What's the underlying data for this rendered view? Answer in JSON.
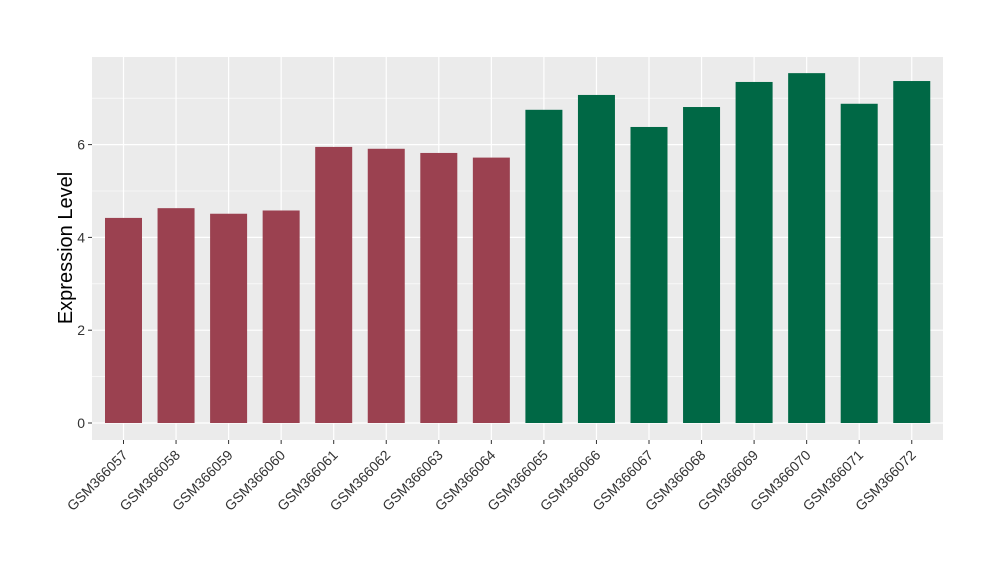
{
  "chart_data": {
    "type": "bar",
    "title": "",
    "xlabel": "",
    "ylabel": "Expression Level",
    "ylim": [
      0,
      7.9
    ],
    "yticks": [
      0,
      2,
      4,
      6
    ],
    "grid": true,
    "categories": [
      "GSM366057",
      "GSM366058",
      "GSM366059",
      "GSM366060",
      "GSM366061",
      "GSM366062",
      "GSM366063",
      "GSM366064",
      "GSM366065",
      "GSM366066",
      "GSM366067",
      "GSM366068",
      "GSM366069",
      "GSM366070",
      "GSM366071",
      "GSM366072"
    ],
    "values": [
      4.42,
      4.63,
      4.51,
      4.58,
      5.95,
      5.91,
      5.82,
      5.72,
      6.75,
      7.07,
      6.38,
      6.81,
      7.35,
      7.54,
      6.88,
      7.37
    ],
    "bar_colors": [
      "#9b4150",
      "#9b4150",
      "#9b4150",
      "#9b4150",
      "#9b4150",
      "#9b4150",
      "#9b4150",
      "#9b4150",
      "#006845",
      "#006845",
      "#006845",
      "#006845",
      "#006845",
      "#006845",
      "#006845",
      "#006845"
    ],
    "panel_background": "#ebebeb",
    "gridline_color": "#ffffff"
  }
}
